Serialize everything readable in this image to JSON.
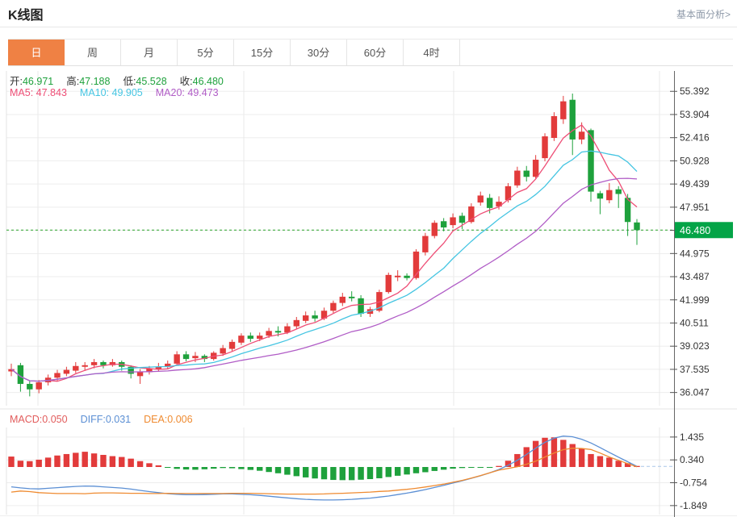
{
  "header": {
    "title": "K线图",
    "link_label": "基本面分析>"
  },
  "tabs": [
    {
      "label": "日",
      "active": true
    },
    {
      "label": "周"
    },
    {
      "label": "月"
    },
    {
      "label": "5分"
    },
    {
      "label": "15分"
    },
    {
      "label": "30分"
    },
    {
      "label": "60分"
    },
    {
      "label": "4时"
    }
  ],
  "ohlc_legend": {
    "open_label": "开:",
    "open": "46.971",
    "high_label": "高:",
    "high": "47.188",
    "low_label": "低:",
    "low": "45.528",
    "close_label": "收:",
    "close": "46.480"
  },
  "ma_legend": [
    {
      "label": "MA5:",
      "value": "47.843",
      "color_key": "ma5"
    },
    {
      "label": "MA10:",
      "value": "49.905",
      "color_key": "ma10"
    },
    {
      "label": "MA20:",
      "value": "49.473",
      "color_key": "ma20"
    }
  ],
  "macd_legend": [
    {
      "label": "MACD:",
      "value": "0.050",
      "color_key": "macd"
    },
    {
      "label": "DIFF:",
      "value": "0.031",
      "color_key": "diff"
    },
    {
      "label": "DEA:",
      "value": "0.006",
      "color_key": "dea"
    }
  ],
  "price_badge": "46.480",
  "colors": {
    "up": "#e23b3b",
    "down": "#1ea13c",
    "badge": "#04a447",
    "dashed_line": "#2aa52a",
    "ma5": "#ee4e76",
    "ma10": "#45c5e2",
    "ma20": "#b05cc6",
    "macd": "#e25c5c",
    "diff": "#5b8fd4",
    "dea": "#ef8b31",
    "tab_active": "#ef8144",
    "axis_text": "#333333"
  },
  "chart_data": {
    "type": "candlestick",
    "title": "K线图",
    "panels": [
      "price+MA",
      "MACD"
    ],
    "legend_position": "top-left",
    "grid": true,
    "vgrid_x": [
      47,
      302,
      562,
      817
    ],
    "main": {
      "ylim": [
        35.2,
        56.7
      ],
      "y_ticks": [
        "55.392",
        "53.904",
        "52.416",
        "50.928",
        "49.439",
        "47.951",
        "46.463",
        "44.975",
        "43.487",
        "41.999",
        "40.511",
        "39.023",
        "37.535",
        "36.047"
      ],
      "current_price": 46.48,
      "ma_windows": [
        5,
        10,
        20
      ],
      "candles_ohlc": [
        [
          37.4,
          37.9,
          37.1,
          37.55
        ],
        [
          37.8,
          37.95,
          36.1,
          36.6
        ],
        [
          36.6,
          36.8,
          35.8,
          36.25
        ],
        [
          36.25,
          36.85,
          36.0,
          36.7
        ],
        [
          36.7,
          37.2,
          36.5,
          37.0
        ],
        [
          37.0,
          37.5,
          36.8,
          37.3
        ],
        [
          37.25,
          37.7,
          37.1,
          37.5
        ],
        [
          37.45,
          38.0,
          37.3,
          37.75
        ],
        [
          37.7,
          38.0,
          37.45,
          37.8
        ],
        [
          37.8,
          38.2,
          37.6,
          38.0
        ],
        [
          38.0,
          38.1,
          37.6,
          37.8
        ],
        [
          37.8,
          38.2,
          37.7,
          38.0
        ],
        [
          38.0,
          38.1,
          37.45,
          37.7
        ],
        [
          37.7,
          37.8,
          36.95,
          37.25
        ],
        [
          37.1,
          37.55,
          36.6,
          37.4
        ],
        [
          37.35,
          37.75,
          37.2,
          37.6
        ],
        [
          37.55,
          37.95,
          37.4,
          37.7
        ],
        [
          37.7,
          38.1,
          37.55,
          37.9
        ],
        [
          37.9,
          38.7,
          37.8,
          38.5
        ],
        [
          38.5,
          38.7,
          38.05,
          38.2
        ],
        [
          38.25,
          38.65,
          38.0,
          38.4
        ],
        [
          38.4,
          38.5,
          38.0,
          38.2
        ],
        [
          38.2,
          38.7,
          38.1,
          38.6
        ],
        [
          38.55,
          39.1,
          38.4,
          38.9
        ],
        [
          38.85,
          39.45,
          38.7,
          39.3
        ],
        [
          39.25,
          39.85,
          39.1,
          39.7
        ],
        [
          39.7,
          39.9,
          39.3,
          39.5
        ],
        [
          39.5,
          39.9,
          39.35,
          39.7
        ],
        [
          39.7,
          40.2,
          39.55,
          40.0
        ],
        [
          40.0,
          40.3,
          39.65,
          39.9
        ],
        [
          39.9,
          40.5,
          39.8,
          40.3
        ],
        [
          40.3,
          40.9,
          40.15,
          40.7
        ],
        [
          40.65,
          41.25,
          40.5,
          41.0
        ],
        [
          41.0,
          41.3,
          40.6,
          40.8
        ],
        [
          40.8,
          41.5,
          40.7,
          41.3
        ],
        [
          41.3,
          41.95,
          41.15,
          41.8
        ],
        [
          41.8,
          42.45,
          41.6,
          42.2
        ],
        [
          42.2,
          42.55,
          41.9,
          42.1
        ],
        [
          42.1,
          42.3,
          40.9,
          41.1
        ],
        [
          41.1,
          41.55,
          40.9,
          41.4
        ],
        [
          41.3,
          42.65,
          41.2,
          42.5
        ],
        [
          42.5,
          43.75,
          42.4,
          43.6
        ],
        [
          43.45,
          43.9,
          43.2,
          43.55
        ],
        [
          43.55,
          43.7,
          43.25,
          43.4
        ],
        [
          43.4,
          45.25,
          43.3,
          45.1
        ],
        [
          45.05,
          46.3,
          44.85,
          46.1
        ],
        [
          46.1,
          47.1,
          45.95,
          46.95
        ],
        [
          47.05,
          47.25,
          46.4,
          46.65
        ],
        [
          46.8,
          47.55,
          46.6,
          47.3
        ],
        [
          47.4,
          47.6,
          46.55,
          46.95
        ],
        [
          47.0,
          48.2,
          46.9,
          48.0
        ],
        [
          48.25,
          48.95,
          48.05,
          48.7
        ],
        [
          48.55,
          48.8,
          47.55,
          47.9
        ],
        [
          48.0,
          48.65,
          47.8,
          48.3
        ],
        [
          48.4,
          49.5,
          48.25,
          49.3
        ],
        [
          49.35,
          50.55,
          49.2,
          50.3
        ],
        [
          50.3,
          50.6,
          49.6,
          49.9
        ],
        [
          49.9,
          51.3,
          49.8,
          51.0
        ],
        [
          51.1,
          52.7,
          50.9,
          52.5
        ],
        [
          52.4,
          54.05,
          52.2,
          53.8
        ],
        [
          53.6,
          55.1,
          53.3,
          54.75
        ],
        [
          54.85,
          55.25,
          51.3,
          52.3
        ],
        [
          52.3,
          53.4,
          52.0,
          52.8
        ],
        [
          52.9,
          53.0,
          48.3,
          48.95
        ],
        [
          48.85,
          49.0,
          47.5,
          48.5
        ],
        [
          48.4,
          49.5,
          48.2,
          49.05
        ],
        [
          49.1,
          49.3,
          47.9,
          48.8
        ],
        [
          48.55,
          48.8,
          46.1,
          47.0
        ],
        [
          46.971,
          47.188,
          45.528,
          46.48
        ]
      ]
    },
    "macd": {
      "ylim": [
        -2.28,
        1.9
      ],
      "y_ticks": [
        "1.435",
        "0.340",
        "-0.754",
        "-1.849"
      ],
      "hist": [
        0.5,
        0.3,
        0.28,
        0.35,
        0.45,
        0.55,
        0.62,
        0.68,
        0.73,
        0.65,
        0.58,
        0.52,
        0.48,
        0.4,
        0.28,
        0.18,
        0.08,
        -0.04,
        -0.09,
        -0.12,
        -0.13,
        -0.11,
        -0.08,
        -0.05,
        -0.06,
        -0.1,
        -0.14,
        -0.18,
        -0.24,
        -0.3,
        -0.37,
        -0.44,
        -0.5,
        -0.55,
        -0.59,
        -0.62,
        -0.63,
        -0.63,
        -0.61,
        -0.58,
        -0.54,
        -0.48,
        -0.42,
        -0.36,
        -0.3,
        -0.25,
        -0.19,
        -0.13,
        -0.08,
        -0.05,
        -0.03,
        -0.02,
        -0.01,
        0.05,
        0.3,
        0.62,
        0.95,
        1.25,
        1.4,
        1.42,
        1.3,
        1.1,
        0.88,
        0.62,
        0.52,
        0.45,
        0.3,
        0.18,
        0.05
      ],
      "diff": [
        -0.95,
        -1.0,
        -1.04,
        -1.05,
        -1.02,
        -0.99,
        -0.96,
        -0.93,
        -0.91,
        -0.92,
        -0.95,
        -0.98,
        -1.01,
        -1.06,
        -1.12,
        -1.18,
        -1.23,
        -1.28,
        -1.31,
        -1.33,
        -1.33,
        -1.32,
        -1.31,
        -1.29,
        -1.29,
        -1.31,
        -1.33,
        -1.36,
        -1.4,
        -1.44,
        -1.48,
        -1.52,
        -1.55,
        -1.57,
        -1.58,
        -1.58,
        -1.57,
        -1.55,
        -1.52,
        -1.49,
        -1.44,
        -1.39,
        -1.32,
        -1.25,
        -1.17,
        -1.08,
        -0.98,
        -0.88,
        -0.77,
        -0.66,
        -0.54,
        -0.42,
        -0.28,
        -0.12,
        0.08,
        0.32,
        0.6,
        0.9,
        1.18,
        1.38,
        1.48,
        1.45,
        1.33,
        1.15,
        0.93,
        0.7,
        0.47,
        0.25,
        0.031
      ],
      "dea": [
        -1.2,
        -1.15,
        -1.18,
        -1.23,
        -1.25,
        -1.27,
        -1.27,
        -1.27,
        -1.28,
        -1.25,
        -1.24,
        -1.24,
        -1.25,
        -1.26,
        -1.26,
        -1.27,
        -1.27,
        -1.26,
        -1.27,
        -1.27,
        -1.27,
        -1.27,
        -1.27,
        -1.27,
        -1.26,
        -1.26,
        -1.26,
        -1.27,
        -1.28,
        -1.29,
        -1.3,
        -1.3,
        -1.3,
        -1.3,
        -1.29,
        -1.27,
        -1.26,
        -1.24,
        -1.22,
        -1.2,
        -1.17,
        -1.15,
        -1.11,
        -1.07,
        -1.02,
        -0.96,
        -0.89,
        -0.82,
        -0.73,
        -0.64,
        -0.53,
        -0.41,
        -0.28,
        -0.15,
        -0.07,
        0.01,
        0.13,
        0.28,
        0.48,
        0.67,
        0.83,
        0.9,
        0.89,
        0.84,
        0.67,
        0.48,
        0.32,
        0.16,
        0.006
      ]
    }
  }
}
